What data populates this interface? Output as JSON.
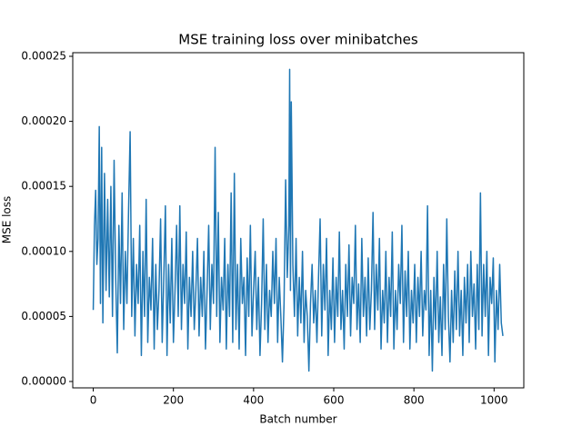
{
  "chart_data": {
    "type": "line",
    "title": "MSE training loss over minibatches",
    "xlabel": "Batch number",
    "ylabel": "MSE loss",
    "xlim": [
      -51.15,
      1074.15
    ],
    "ylim": [
      -4.9e-06,
      0.0002528
    ],
    "xticks": [
      0,
      200,
      400,
      600,
      800,
      1000
    ],
    "yticks": [
      {
        "value": 0,
        "label": "0.00000"
      },
      {
        "value": 5e-05,
        "label": "0.00005"
      },
      {
        "value": 0.0001,
        "label": "0.00010"
      },
      {
        "value": 0.00015,
        "label": "0.00015"
      },
      {
        "value": 0.0002,
        "label": "0.00020"
      },
      {
        "value": 0.00025,
        "label": "0.00025"
      }
    ],
    "x": [
      0,
      3,
      6,
      9,
      12,
      15,
      18,
      21,
      24,
      28,
      32,
      36,
      40,
      44,
      48,
      52,
      56,
      60,
      64,
      68,
      72,
      76,
      80,
      84,
      88,
      92,
      96,
      100,
      104,
      108,
      112,
      116,
      120,
      124,
      128,
      132,
      136,
      140,
      144,
      148,
      152,
      156,
      160,
      164,
      168,
      172,
      176,
      180,
      184,
      188,
      192,
      196,
      200,
      204,
      208,
      212,
      216,
      220,
      224,
      228,
      232,
      236,
      240,
      244,
      248,
      252,
      256,
      260,
      264,
      268,
      272,
      276,
      280,
      284,
      288,
      292,
      296,
      300,
      304,
      308,
      312,
      316,
      320,
      324,
      328,
      332,
      336,
      340,
      344,
      348,
      352,
      356,
      360,
      364,
      368,
      372,
      376,
      380,
      384,
      388,
      392,
      396,
      400,
      404,
      408,
      412,
      416,
      420,
      424,
      428,
      432,
      436,
      440,
      444,
      448,
      452,
      456,
      460,
      464,
      468,
      472,
      476,
      480,
      484,
      488,
      490,
      492,
      494,
      498,
      502,
      506,
      510,
      514,
      518,
      522,
      526,
      530,
      534,
      538,
      542,
      546,
      550,
      554,
      558,
      562,
      566,
      570,
      574,
      578,
      582,
      586,
      590,
      594,
      598,
      602,
      606,
      610,
      614,
      618,
      622,
      626,
      630,
      634,
      638,
      642,
      646,
      650,
      654,
      658,
      662,
      666,
      670,
      674,
      678,
      682,
      686,
      690,
      694,
      698,
      702,
      706,
      710,
      714,
      718,
      722,
      726,
      730,
      734,
      738,
      742,
      746,
      750,
      754,
      758,
      762,
      766,
      770,
      774,
      778,
      782,
      786,
      790,
      794,
      798,
      802,
      806,
      810,
      814,
      818,
      822,
      826,
      830,
      834,
      838,
      842,
      846,
      850,
      854,
      858,
      862,
      866,
      870,
      874,
      878,
      882,
      886,
      890,
      894,
      898,
      902,
      906,
      910,
      914,
      918,
      922,
      926,
      930,
      934,
      938,
      942,
      946,
      950,
      954,
      958,
      962,
      966,
      970,
      974,
      978,
      982,
      986,
      990,
      994,
      998,
      1002,
      1006,
      1010,
      1014,
      1018,
      1022
    ],
    "series": [
      {
        "color": "#1f77b4",
        "values": [
          5.5e-05,
          0.00012,
          0.000147,
          9e-05,
          0.00011,
          0.000196,
          6e-05,
          0.00018,
          4.5e-05,
          0.00016,
          7e-05,
          0.00014,
          6.5e-05,
          0.00015,
          5e-05,
          0.00017,
          8e-05,
          2.2e-05,
          0.00012,
          6e-05,
          0.000145,
          4e-05,
          0.0001,
          6e-05,
          0.00013,
          0.000192,
          5e-05,
          0.00011,
          3.5e-05,
          9e-05,
          6e-05,
          0.00012,
          2e-05,
          0.0001,
          5e-05,
          0.00014,
          3e-05,
          8e-05,
          5.5e-05,
          0.00011,
          2.5e-05,
          9e-05,
          4e-05,
          7e-05,
          0.000125,
          3e-05,
          8e-05,
          0.000135,
          2e-05,
          9e-05,
          4.5e-05,
          0.00011,
          3e-05,
          7e-05,
          0.00012,
          5e-05,
          0.000135,
          4e-05,
          9e-05,
          6e-05,
          0.000115,
          2.5e-05,
          8e-05,
          5e-05,
          0.0001,
          4e-05,
          7e-05,
          0.00011,
          3.5e-05,
          8e-05,
          5e-05,
          0.0001,
          2.5e-05,
          7e-05,
          0.00012,
          4e-05,
          9e-05,
          6e-05,
          0.00018,
          5e-05,
          0.00013,
          3e-05,
          8e-05,
          5.5e-05,
          0.00011,
          2.5e-05,
          9e-05,
          5e-05,
          0.000145,
          3e-05,
          0.00016,
          4e-05,
          9e-05,
          2.5e-05,
          0.00011,
          6e-05,
          8e-05,
          2e-05,
          9.5e-05,
          5e-05,
          0.00012,
          3.5e-05,
          7e-05,
          0.0001,
          4e-05,
          8e-05,
          2e-05,
          6e-05,
          0.000125,
          4e-05,
          9e-05,
          3e-05,
          7e-05,
          5e-05,
          0.0001,
          6e-05,
          0.00011,
          3e-05,
          8e-05,
          5e-05,
          1.5e-05,
          6e-05,
          0.000155,
          8e-05,
          0.00012,
          0.00024,
          7e-05,
          0.000215,
          9e-05,
          5e-05,
          0.00011,
          3.5e-05,
          8e-05,
          4.5e-05,
          0.0001,
          3e-05,
          7e-05,
          5e-05,
          8e-06,
          6e-05,
          9e-05,
          4.5e-05,
          7e-05,
          3e-05,
          8e-05,
          0.000125,
          3.5e-05,
          9e-05,
          5.5e-05,
          0.00011,
          2e-05,
          7e-05,
          4e-05,
          9.5e-05,
          3e-05,
          8e-05,
          5e-05,
          0.000115,
          4e-05,
          7e-05,
          2.5e-05,
          9e-05,
          5e-05,
          0.000105,
          3.5e-05,
          8e-05,
          6e-05,
          0.00012,
          4e-05,
          7.5e-05,
          3e-05,
          0.00011,
          5e-05,
          8e-05,
          3.5e-05,
          9.5e-05,
          4e-05,
          7e-05,
          0.00013,
          4e-05,
          9e-05,
          5.5e-05,
          0.00011,
          2.5e-05,
          7e-05,
          4.5e-05,
          0.0001,
          3e-05,
          8e-05,
          5e-05,
          0.000115,
          2.5e-05,
          7e-05,
          4e-05,
          9e-05,
          6e-05,
          0.00012,
          3e-05,
          8.5e-05,
          5e-05,
          0.0001,
          2.5e-05,
          7e-05,
          4.5e-05,
          9e-05,
          3e-05,
          8e-05,
          5e-05,
          0.0001,
          3.5e-05,
          7e-05,
          5.5e-05,
          0.000135,
          2e-05,
          7e-05,
          8e-06,
          8e-05,
          4e-05,
          0.0001,
          3e-05,
          6.5e-05,
          2e-05,
          9e-05,
          4e-05,
          0.000125,
          5e-05,
          1.5e-05,
          7e-05,
          3e-05,
          8.5e-05,
          4e-05,
          0.0001,
          3.5e-05,
          7e-05,
          2e-05,
          8e-05,
          4.5e-05,
          9e-05,
          3e-05,
          0.0001,
          5e-05,
          7.5e-05,
          2.5e-05,
          9e-05,
          4e-05,
          0.000145,
          3.5e-05,
          9e-05,
          5e-05,
          0.0001,
          2e-05,
          8e-05,
          6e-05,
          9.5e-05,
          1.5e-05,
          7e-05,
          4e-05,
          9e-05,
          4.5e-05,
          3.5e-05
        ]
      }
    ]
  }
}
